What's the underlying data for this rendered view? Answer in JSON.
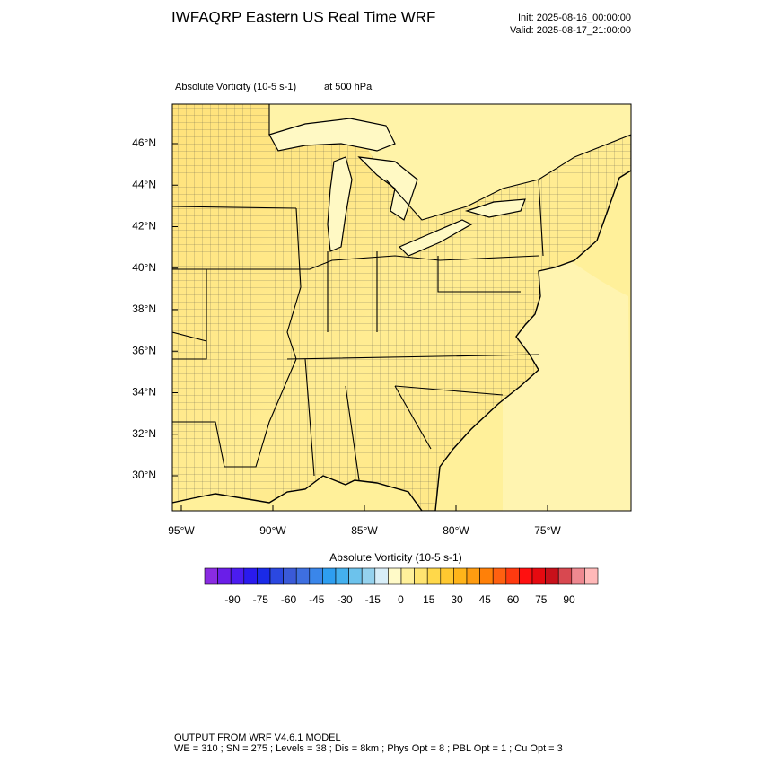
{
  "header": {
    "title": "IWFAQRP Eastern US Real Time WRF",
    "init": "Init: 2025-08-16_00:00:00",
    "valid": "Valid: 2025-08-17_21:00:00"
  },
  "map": {
    "field": "Absolute Vorticity   (10-5 s-1)",
    "level": "at   500 hPa",
    "lat_labels": [
      "46°N",
      "44°N",
      "42°N",
      "40°N",
      "38°N",
      "36°N",
      "34°N",
      "32°N",
      "30°N"
    ],
    "lon_labels": [
      "95°W",
      "90°W",
      "85°W",
      "80°W",
      "75°W"
    ]
  },
  "colorbar": {
    "title": "Absolute Vorticity  (10-5 s-1)",
    "labels": [
      "-90",
      "-75",
      "-60",
      "-45",
      "-30",
      "-15",
      "0",
      "15",
      "30",
      "45",
      "60",
      "75",
      "90"
    ],
    "colors": [
      "#8a2be2",
      "#6a1ee8",
      "#4b1cf0",
      "#2a1aee",
      "#1a2ae8",
      "#2b48e0",
      "#3a5ad8",
      "#3e6fe0",
      "#3a86ea",
      "#2e9ef0",
      "#44b0ee",
      "#6cc2ec",
      "#95d2ee",
      "#d8eef8",
      "#fffac8",
      "#fff09a",
      "#ffe470",
      "#ffd84a",
      "#ffc830",
      "#ffb41a",
      "#ff9c10",
      "#ff8008",
      "#ff6010",
      "#ff3a10",
      "#ff1010",
      "#e60a10",
      "#c8101a",
      "#d84850",
      "#ee8890",
      "#ffb8b8"
    ]
  },
  "footer": {
    "line1": "OUTPUT FROM WRF V4.6.1 MODEL",
    "line2": "WE = 310 ; SN = 275 ; Levels = 38 ; Dis = 8km ; Phys Opt = 8 ; PBL Opt = 1 ; Cu Opt = 3"
  }
}
